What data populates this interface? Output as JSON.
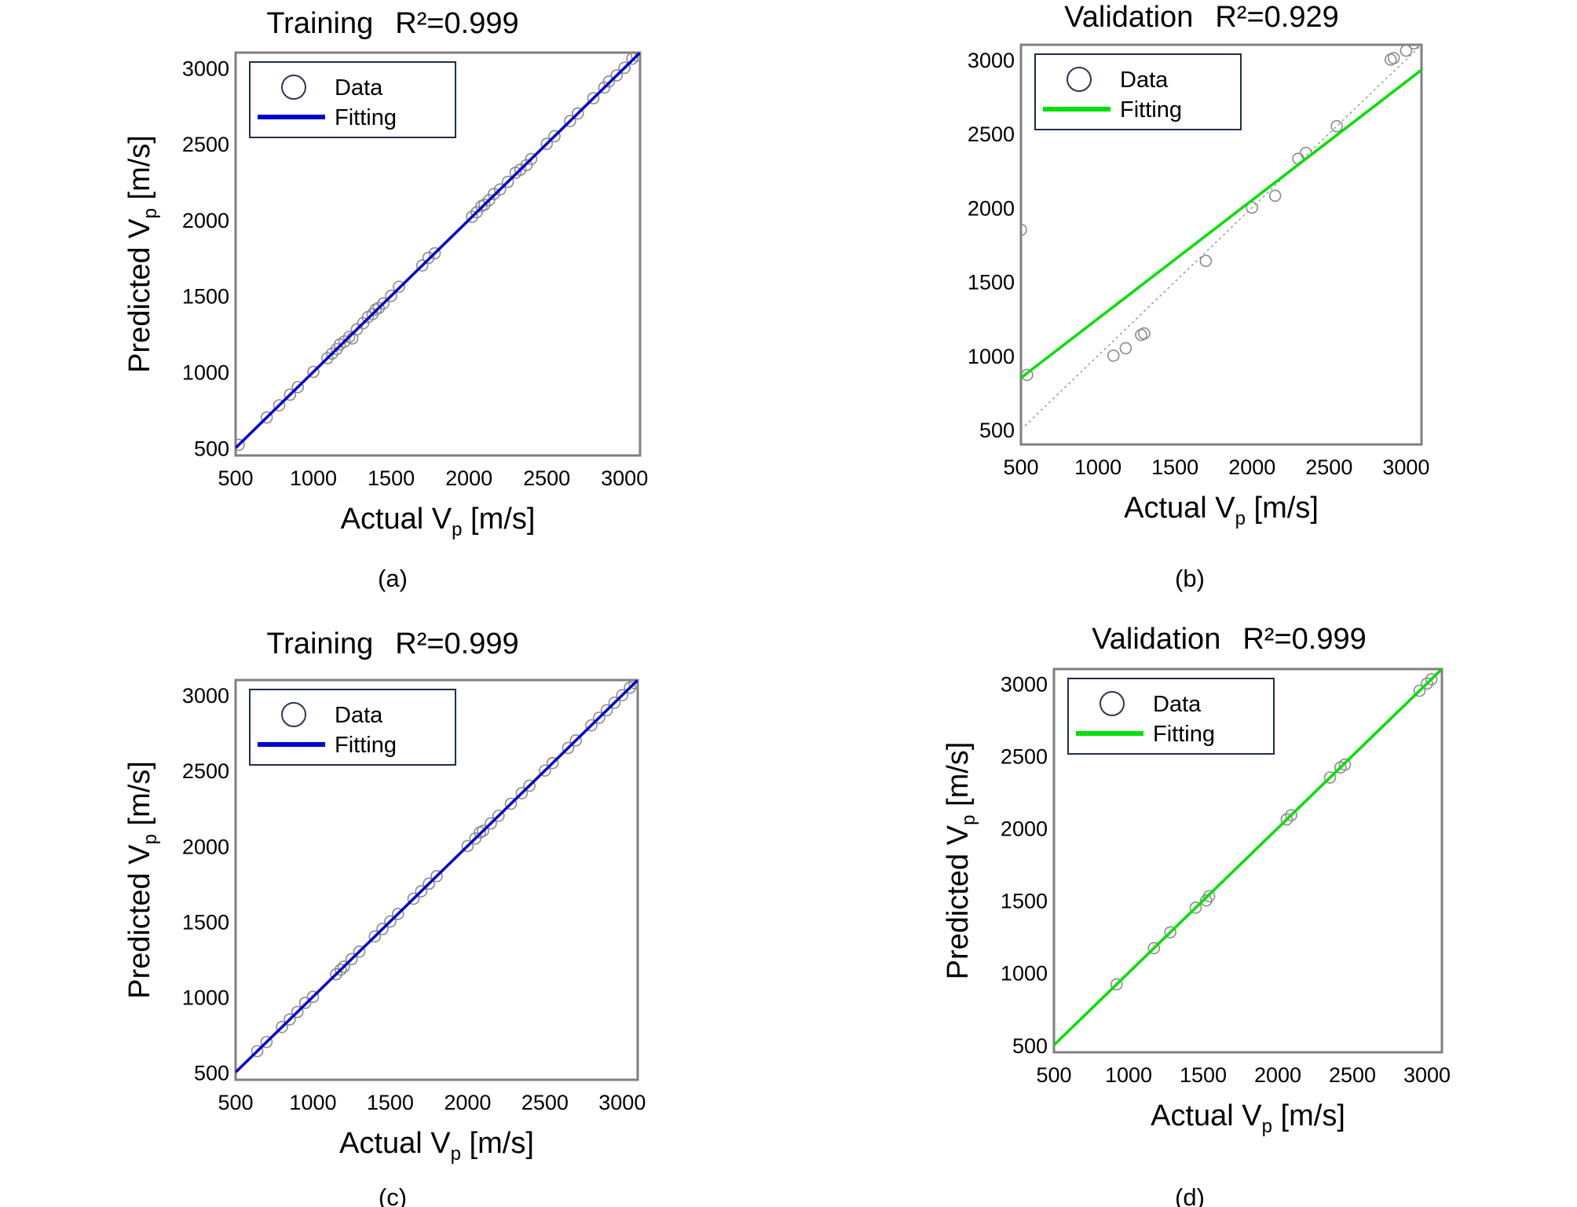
{
  "chart_data": [
    {
      "type": "scatter",
      "panel_label": "(a)",
      "title_name": "Training",
      "title_r2": "R²=0.999",
      "xlabel_main": "Actual V",
      "xlabel_sub": "p",
      "xlabel_unit": " [m/s]",
      "ylabel_main": "Predicted V",
      "ylabel_sub": "p",
      "ylabel_unit": " [m/s]",
      "xlim": [
        500,
        3100
      ],
      "ylim": [
        450,
        3100
      ],
      "xticks": [
        500,
        1000,
        1500,
        2000,
        2500,
        3000
      ],
      "yticks": [
        500,
        1000,
        1500,
        2000,
        2500,
        3000
      ],
      "legend": {
        "position": "top-left",
        "data_label": "Data",
        "fit_label": "Fitting"
      },
      "fit_color": "#0000cc",
      "fit_line": {
        "slope": 1.0,
        "intercept": 0
      },
      "points": [
        [
          520,
          520
        ],
        [
          700,
          700
        ],
        [
          780,
          780
        ],
        [
          850,
          850
        ],
        [
          900,
          900
        ],
        [
          1000,
          1000
        ],
        [
          1090,
          1090
        ],
        [
          1120,
          1120
        ],
        [
          1150,
          1150
        ],
        [
          1170,
          1180
        ],
        [
          1200,
          1200
        ],
        [
          1230,
          1230
        ],
        [
          1250,
          1220
        ],
        [
          1280,
          1280
        ],
        [
          1320,
          1320
        ],
        [
          1350,
          1360
        ],
        [
          1380,
          1380
        ],
        [
          1400,
          1410
        ],
        [
          1420,
          1420
        ],
        [
          1450,
          1450
        ],
        [
          1500,
          1500
        ],
        [
          1550,
          1560
        ],
        [
          1700,
          1700
        ],
        [
          1740,
          1750
        ],
        [
          1780,
          1780
        ],
        [
          2020,
          2020
        ],
        [
          2050,
          2050
        ],
        [
          2080,
          2090
        ],
        [
          2100,
          2100
        ],
        [
          2130,
          2130
        ],
        [
          2160,
          2170
        ],
        [
          2200,
          2200
        ],
        [
          2250,
          2250
        ],
        [
          2300,
          2310
        ],
        [
          2330,
          2330
        ],
        [
          2370,
          2360
        ],
        [
          2400,
          2400
        ],
        [
          2500,
          2500
        ],
        [
          2550,
          2550
        ],
        [
          2650,
          2650
        ],
        [
          2700,
          2700
        ],
        [
          2800,
          2800
        ],
        [
          2870,
          2870
        ],
        [
          2900,
          2910
        ],
        [
          2950,
          2950
        ],
        [
          3000,
          3000
        ],
        [
          3050,
          3060
        ],
        [
          3080,
          3080
        ]
      ]
    },
    {
      "type": "scatter",
      "panel_label": "(b)",
      "title_name": "Validation",
      "title_r2": "R²=0.929",
      "xlabel_main": "Actual V",
      "xlabel_sub": "p",
      "xlabel_unit": " [m/s]",
      "ylabel_main": "",
      "ylabel_sub": "",
      "ylabel_unit": "",
      "xlim": [
        500,
        3100
      ],
      "ylim": [
        400,
        3100
      ],
      "xticks": [
        500,
        1000,
        1500,
        2000,
        2500,
        3000
      ],
      "yticks": [
        500,
        1000,
        1500,
        2000,
        2500,
        3000
      ],
      "legend": {
        "position": "top-left",
        "data_label": "Data",
        "fit_label": "Fitting"
      },
      "fit_color": "#00e000",
      "fit_line": {
        "slope": 0.8,
        "intercept": 450
      },
      "identity_line": true,
      "points": [
        [
          500,
          1850
        ],
        [
          540,
          870
        ],
        [
          1100,
          1000
        ],
        [
          1180,
          1050
        ],
        [
          1280,
          1140
        ],
        [
          1300,
          1150
        ],
        [
          1700,
          1640
        ],
        [
          2000,
          2000
        ],
        [
          2150,
          2080
        ],
        [
          2300,
          2330
        ],
        [
          2350,
          2370
        ],
        [
          2550,
          2550
        ],
        [
          2900,
          3000
        ],
        [
          2920,
          3010
        ],
        [
          3000,
          3060
        ],
        [
          3050,
          3110
        ]
      ]
    },
    {
      "type": "scatter",
      "panel_label": "(c)",
      "title_name": "Training",
      "title_r2": "R²=0.999",
      "xlabel_main": "Actual V",
      "xlabel_sub": "p",
      "xlabel_unit": " [m/s]",
      "ylabel_main": "Predicted V",
      "ylabel_sub": "p",
      "ylabel_unit": " [m/s]",
      "xlim": [
        500,
        3100
      ],
      "ylim": [
        450,
        3100
      ],
      "xticks": [
        500,
        1000,
        1500,
        2000,
        2500,
        3000
      ],
      "yticks": [
        500,
        1000,
        1500,
        2000,
        2500,
        3000
      ],
      "legend": {
        "position": "top-left",
        "data_label": "Data",
        "fit_label": "Fitting"
      },
      "fit_color": "#0000cc",
      "fit_line": {
        "slope": 1.0,
        "intercept": 0
      },
      "points": [
        [
          640,
          640
        ],
        [
          700,
          700
        ],
        [
          800,
          800
        ],
        [
          850,
          850
        ],
        [
          900,
          900
        ],
        [
          950,
          960
        ],
        [
          1000,
          1000
        ],
        [
          1150,
          1150
        ],
        [
          1180,
          1180
        ],
        [
          1200,
          1200
        ],
        [
          1250,
          1250
        ],
        [
          1300,
          1300
        ],
        [
          1400,
          1400
        ],
        [
          1450,
          1450
        ],
        [
          1500,
          1500
        ],
        [
          1550,
          1550
        ],
        [
          1650,
          1650
        ],
        [
          1700,
          1700
        ],
        [
          1750,
          1750
        ],
        [
          1800,
          1800
        ],
        [
          2000,
          2000
        ],
        [
          2050,
          2050
        ],
        [
          2080,
          2090
        ],
        [
          2100,
          2100
        ],
        [
          2150,
          2150
        ],
        [
          2200,
          2200
        ],
        [
          2280,
          2280
        ],
        [
          2350,
          2350
        ],
        [
          2400,
          2400
        ],
        [
          2500,
          2500
        ],
        [
          2550,
          2550
        ],
        [
          2650,
          2650
        ],
        [
          2700,
          2700
        ],
        [
          2800,
          2800
        ],
        [
          2850,
          2850
        ],
        [
          2900,
          2900
        ],
        [
          2950,
          2950
        ],
        [
          3000,
          3000
        ],
        [
          3050,
          3050
        ],
        [
          3080,
          3080
        ]
      ]
    },
    {
      "type": "scatter",
      "panel_label": "(d)",
      "title_name": "Validation",
      "title_r2": "R²=0.999",
      "xlabel_main": "Actual V",
      "xlabel_sub": "p",
      "xlabel_unit": " [m/s]",
      "ylabel_main": "Predicted V",
      "ylabel_sub": "p",
      "ylabel_unit": " [m/s]",
      "xlim": [
        500,
        3100
      ],
      "ylim": [
        450,
        3100
      ],
      "xticks": [
        500,
        1000,
        1500,
        2000,
        2500,
        3000
      ],
      "yticks": [
        500,
        1000,
        1500,
        2000,
        2500,
        3000
      ],
      "legend": {
        "position": "top-left",
        "data_label": "Data",
        "fit_label": "Fitting"
      },
      "fit_color": "#00e000",
      "fit_line": {
        "slope": 1.0,
        "intercept": 0
      },
      "points": [
        [
          920,
          920
        ],
        [
          1170,
          1170
        ],
        [
          1280,
          1280
        ],
        [
          1450,
          1450
        ],
        [
          1520,
          1500
        ],
        [
          1540,
          1530
        ],
        [
          2060,
          2060
        ],
        [
          2090,
          2090
        ],
        [
          2350,
          2350
        ],
        [
          2420,
          2420
        ],
        [
          2450,
          2440
        ],
        [
          2950,
          2950
        ],
        [
          3000,
          3000
        ],
        [
          3030,
          3030
        ]
      ]
    }
  ]
}
